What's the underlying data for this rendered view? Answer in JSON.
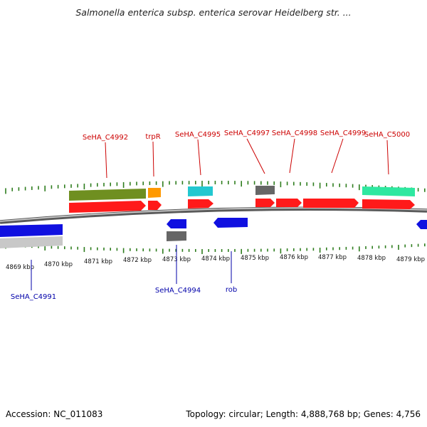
{
  "title": "Salmonella enterica subsp. enterica serovar Heidelberg str. ...",
  "accession": "Accession: NC_011083",
  "topology": "Topology: circular; Length: 4,888,768 bp; Genes: 4,756",
  "colors": {
    "forward_label": "#cc0000",
    "reverse_label": "#0000aa",
    "backbone": "#8a8a8a",
    "tick": "#2e7d1e",
    "cds": "#ff1a1a",
    "reverse_cds": "#1010e0",
    "olive": "#6f8f20",
    "orange": "#ff9900",
    "cyan": "#22c8d0",
    "grey": "#666666",
    "mint": "#2ee8a0",
    "light_grey": "#c8c8c8"
  },
  "scale": {
    "labels": [
      "4869 kbp",
      "4870 kbp",
      "4871 kbp",
      "4872 kbp",
      "4873 kbp",
      "4874 kbp",
      "4875 kbp",
      "4876 kbp",
      "4877 kbp",
      "4878 kbp",
      "4879 kbp"
    ]
  },
  "forward_genes": [
    "SeHA_C4992",
    "trpR",
    "SeHA_C4995",
    "SeHA_C4997",
    "SeHA_C4998",
    "SeHA_C4999",
    "SeHA_C5000"
  ],
  "reverse_genes": [
    "SeHA_C4991",
    "SeHA_C4994",
    "rob"
  ]
}
